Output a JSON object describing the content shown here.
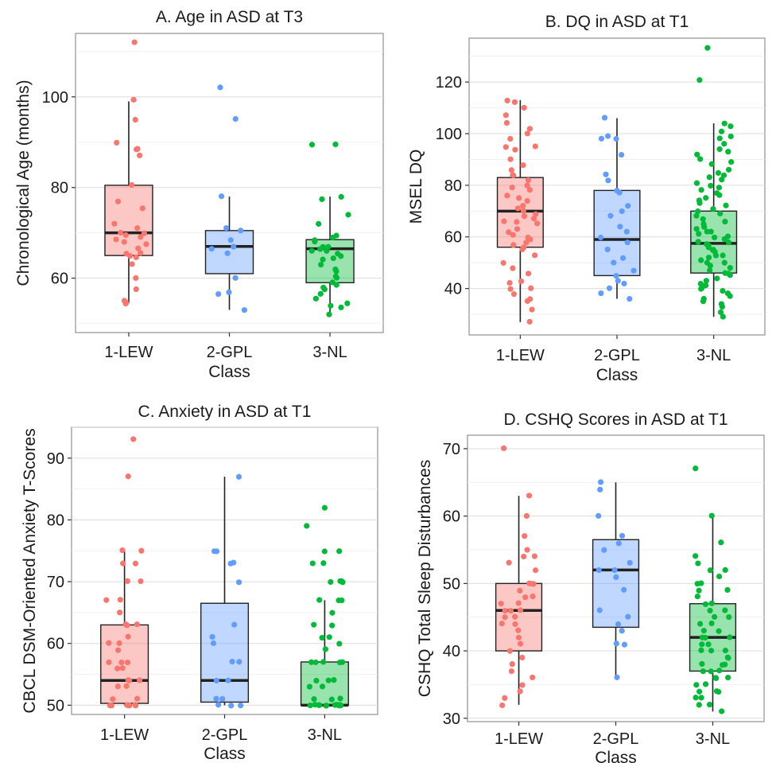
{
  "figure": {
    "colors": {
      "1-LEW": "#F8766D",
      "2-GPL": "#619CFF",
      "3-NL": "#00BA38"
    },
    "box_fill_opacity": 0.4
  },
  "chart_data": [
    {
      "id": "A",
      "type": "boxplot",
      "title": "A. Age in ASD at T3",
      "xlabel": "Class",
      "ylabel": "Chronological Age (months)",
      "categories": [
        "1-LEW",
        "2-GPL",
        "3-NL"
      ],
      "ylim": [
        48,
        114
      ],
      "yticks": [
        60,
        80,
        100
      ],
      "minor_yticks": [
        50,
        70,
        90,
        110
      ],
      "boxes": [
        {
          "min": 54.5,
          "q1": 65,
          "median": 70,
          "q3": 80.5,
          "max": 99
        },
        {
          "min": 53,
          "q1": 61,
          "median": 67,
          "q3": 70.5,
          "max": 78
        },
        {
          "min": 52,
          "q1": 59,
          "median": 66.5,
          "q3": 68.5,
          "max": 78
        }
      ],
      "points": [
        [
          112,
          99.5,
          95,
          90,
          88.5,
          88.5,
          87,
          80.5,
          77,
          75.5,
          72,
          71,
          70,
          70,
          69.5,
          69,
          68.5,
          68,
          67.5,
          66.5,
          65.5,
          65.5,
          65,
          64.5,
          63,
          60,
          57.5,
          55,
          54.5,
          54.5
        ],
        [
          102,
          95,
          78,
          71,
          70.5,
          68.5,
          67,
          66.5,
          65.5,
          60,
          57,
          56.5,
          53
        ],
        [
          89.5,
          89.5,
          78,
          77.5,
          74,
          72,
          69.5,
          69,
          68.5,
          68,
          67,
          67,
          66.5,
          66,
          66,
          65.5,
          65,
          64.5,
          64,
          63,
          62,
          61.5,
          60.5,
          60,
          59,
          58.5,
          58,
          57.5,
          56.5,
          55.5,
          54.5,
          54,
          53.5,
          52
        ]
      ]
    },
    {
      "id": "B",
      "type": "boxplot",
      "title": "B. DQ in ASD at T1",
      "xlabel": "Class",
      "ylabel": "MSEL DQ",
      "categories": [
        "1-LEW",
        "2-GPL",
        "3-NL"
      ],
      "ylim": [
        22,
        137
      ],
      "yticks": [
        40,
        60,
        80,
        100,
        120
      ],
      "minor_yticks": [
        30,
        50,
        70,
        90,
        110,
        130
      ],
      "boxes": [
        {
          "min": 27,
          "q1": 56,
          "median": 70,
          "q3": 83,
          "max": 113
        },
        {
          "min": 36,
          "q1": 45,
          "median": 59,
          "q3": 78,
          "max": 106
        },
        {
          "min": 29,
          "q1": 46,
          "median": 57.5,
          "q3": 70,
          "max": 104
        }
      ],
      "points": [
        [
          113,
          112,
          110,
          107,
          104,
          102,
          100,
          98,
          95,
          95,
          94,
          90,
          88,
          86,
          84,
          84,
          82,
          80,
          79,
          78,
          76,
          75,
          74,
          72,
          71,
          70,
          69,
          68,
          67,
          66,
          66,
          65,
          63,
          62,
          61,
          60,
          59,
          58,
          57,
          56,
          55,
          53,
          50,
          48,
          46,
          43,
          42,
          40,
          40,
          38,
          36,
          35,
          32,
          27
        ],
        [
          106,
          99,
          98,
          98,
          92,
          84,
          82,
          78,
          77,
          72,
          70,
          68,
          64,
          62,
          60,
          58,
          55,
          52,
          50,
          47,
          45,
          43,
          42,
          40,
          38,
          36
        ],
        [
          133,
          121,
          104,
          103,
          101,
          99,
          98,
          96,
          94,
          93,
          92,
          90,
          89,
          88,
          86,
          85,
          84,
          83,
          82,
          81,
          80,
          79,
          78,
          77,
          76,
          75,
          74,
          73,
          72,
          71,
          70,
          69,
          68,
          67,
          66,
          65,
          64,
          63,
          62,
          62,
          61,
          60,
          60,
          59,
          58,
          58,
          57,
          57,
          56,
          55,
          55,
          54,
          53,
          53,
          52,
          51,
          50,
          50,
          49,
          48,
          47,
          46,
          46,
          45,
          44,
          43,
          42,
          41,
          40,
          40,
          39,
          38,
          37,
          36,
          35,
          34,
          33,
          31,
          29
        ]
      ]
    },
    {
      "id": "C",
      "type": "boxplot",
      "title": "C. Anxiety in ASD at T1",
      "xlabel": "Class",
      "ylabel": "CBCL DSM-Oriented Anxiety T-Scores",
      "categories": [
        "1-LEW",
        "2-GPL",
        "3-NL"
      ],
      "ylim": [
        48.5,
        95
      ],
      "yticks": [
        50,
        60,
        70,
        80,
        90
      ],
      "minor_yticks": [
        55,
        65,
        75,
        85,
        95
      ],
      "boxes": [
        {
          "min": 50,
          "q1": 50.3,
          "median": 54,
          "q3": 63,
          "max": 75
        },
        {
          "min": 50,
          "q1": 50.5,
          "median": 54,
          "q3": 66.5,
          "max": 87
        },
        {
          "min": 50,
          "q1": 50,
          "median": 50,
          "q3": 57,
          "max": 67
        }
      ],
      "points": [
        [
          93,
          87,
          75,
          75,
          73,
          73,
          70,
          70,
          67,
          67,
          65,
          63,
          63,
          63,
          61,
          60,
          60,
          59,
          57,
          57,
          57,
          56,
          56,
          54,
          54,
          54,
          53,
          53,
          51,
          51,
          50,
          50,
          50,
          50,
          50,
          50
        ],
        [
          87,
          75,
          75,
          73,
          73,
          70,
          63,
          61,
          60,
          57,
          57,
          54,
          54,
          51,
          51,
          50,
          50,
          50
        ],
        [
          82,
          79,
          75,
          75,
          73,
          73,
          70,
          70,
          70,
          70,
          67,
          67,
          67,
          65,
          63,
          63,
          61,
          61,
          60,
          59,
          57,
          57,
          57,
          57,
          57,
          54,
          54,
          54,
          53,
          53,
          51,
          51,
          51,
          50,
          50,
          50,
          50,
          50,
          50,
          50,
          50,
          50,
          50,
          50,
          50
        ]
      ]
    },
    {
      "id": "D",
      "type": "boxplot",
      "title": "D. CSHQ Scores in ASD at T1",
      "xlabel": "Class",
      "ylabel": "CSHQ Total Sleep Disturbances",
      "categories": [
        "1-LEW",
        "2-GPL",
        "3-NL"
      ],
      "ylim": [
        29.5,
        72
      ],
      "yticks": [
        30,
        40,
        50,
        60,
        70
      ],
      "minor_yticks": [
        35,
        45,
        55,
        65
      ],
      "boxes": [
        {
          "min": 32,
          "q1": 40,
          "median": 46,
          "q3": 50,
          "max": 63
        },
        {
          "min": 36,
          "q1": 43.5,
          "median": 52,
          "q3": 56.5,
          "max": 65
        },
        {
          "min": 31,
          "q1": 37,
          "median": 42,
          "q3": 47,
          "max": 60
        }
      ],
      "points": [
        [
          70,
          63,
          60,
          57,
          55,
          54,
          54,
          53,
          52,
          50,
          50,
          50,
          49,
          48,
          48,
          47,
          47,
          46,
          46,
          46,
          45,
          45,
          44,
          44,
          43,
          42,
          41,
          40,
          39,
          38,
          37,
          36,
          35,
          34,
          33,
          32
        ],
        [
          65,
          64,
          60,
          57,
          56,
          55,
          53,
          52,
          52,
          51,
          49,
          46,
          45,
          44,
          43,
          41,
          41,
          36
        ],
        [
          67,
          60,
          56,
          54,
          53,
          52,
          52,
          51,
          50,
          50,
          49,
          49,
          48,
          47,
          47,
          46,
          46,
          45,
          45,
          44,
          44,
          43,
          43,
          42,
          42,
          42,
          41,
          41,
          40,
          40,
          40,
          39,
          39,
          38,
          38,
          38,
          37,
          37,
          37,
          36,
          36,
          36,
          35,
          35,
          34,
          34,
          34,
          33,
          33,
          32,
          32,
          31
        ]
      ]
    }
  ]
}
